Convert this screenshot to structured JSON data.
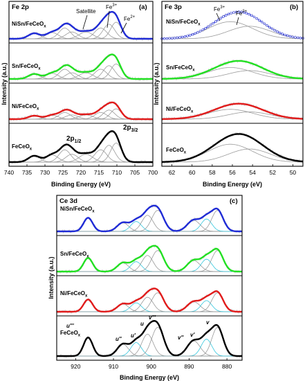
{
  "colors": {
    "blue": "#1f2bd6",
    "green": "#22e022",
    "red": "#e11b1b",
    "black": "#000000",
    "component_gray": "#9a9a9a",
    "component_cyan": "#33c6dd",
    "raw": "#d0d0d0"
  },
  "chart_data": [
    {
      "panel": "(a)",
      "title": "Fe 2p",
      "type": "line",
      "xlabel": "Binding Energy (eV)",
      "ylabel": "Intensity (a.u.)",
      "xlim": [
        740,
        700
      ],
      "x_reversed": true,
      "xticks": [
        740,
        735,
        730,
        725,
        720,
        715,
        710,
        705,
        700
      ],
      "samples": [
        "NiSn/FeCeOx",
        "Sn/FeCeOx",
        "Ni/FeCeOx",
        "FeCeOx"
      ],
      "sample_colors": [
        "blue",
        "green",
        "red",
        "black"
      ],
      "annotations": [
        {
          "text": "Satellite",
          "x": 718,
          "sample": "NiSn/FeCeOx"
        },
        {
          "text": "Fe3+",
          "x": 712,
          "sample": "NiSn/FeCeOx"
        },
        {
          "text": "Fe2+",
          "x": 707,
          "sample": "NiSn/FeCeOx"
        },
        {
          "text": "2p1/2",
          "x": 724,
          "sample": "FeCeOx"
        },
        {
          "text": "2p3/2",
          "x": 710,
          "sample": "FeCeOx"
        }
      ],
      "components": [
        {
          "center": 733,
          "width": 1.6,
          "amp": 0.28
        },
        {
          "center": 728,
          "width": 1.7,
          "amp": 0.32
        },
        {
          "center": 724.5,
          "width": 1.6,
          "amp": 0.55
        },
        {
          "center": 722.5,
          "width": 1.7,
          "amp": 0.35
        },
        {
          "center": 718.6,
          "width": 1.9,
          "amp": 0.35
        },
        {
          "center": 714.5,
          "width": 1.7,
          "amp": 0.55
        },
        {
          "center": 712.2,
          "width": 1.6,
          "amp": 0.75
        },
        {
          "center": 710.2,
          "width": 1.5,
          "amp": 0.85
        }
      ],
      "scales": [
        1.0,
        0.95,
        0.65,
        1.1
      ]
    },
    {
      "panel": "(b)",
      "title": "Fe 3p",
      "type": "line",
      "xlabel": "Binding Energy (eV)",
      "ylabel": "Intensity (a.u.)",
      "xlim": [
        63,
        49
      ],
      "x_reversed": true,
      "xticks": [
        62,
        60,
        58,
        56,
        54,
        52,
        50
      ],
      "samples": [
        "NiSn/FeCeOx",
        "Sn/FeCeOx",
        "Ni/FeCeOx",
        "FeCeOx"
      ],
      "sample_colors": [
        "blue",
        "green",
        "red",
        "black"
      ],
      "annotations": [
        {
          "text": "Fe3+",
          "x": 57.2,
          "sample": "NiSn/FeCeOx"
        },
        {
          "text": "Fe2+",
          "x": 54.8,
          "sample": "NiSn/FeCeOx"
        }
      ],
      "components": [
        {
          "center": 56.2,
          "width": 2.2,
          "amp": 0.75
        },
        {
          "center": 54.3,
          "width": 2.1,
          "amp": 0.55
        }
      ],
      "scales": [
        1.0,
        0.7,
        0.6,
        1.0
      ]
    },
    {
      "panel": "(c)",
      "title": "Ce 3d",
      "type": "line",
      "xlabel": "Binding Energy (eV)",
      "ylabel": "Intensity (a.u.)",
      "xlim": [
        925,
        876
      ],
      "x_reversed": true,
      "xticks": [
        920,
        910,
        900,
        890,
        880
      ],
      "samples": [
        "NiSn/FeCeOx",
        "Sn/FeCeOx",
        "Ni/FeCeOx",
        "FeCeOx"
      ],
      "sample_colors": [
        "blue",
        "green",
        "red",
        "black"
      ],
      "annotations": [
        {
          "text": "u'''",
          "x": 917,
          "sample": "FeCeOx"
        },
        {
          "text": "u''",
          "x": 907.5,
          "sample": "FeCeOx"
        },
        {
          "text": "u'",
          "x": 904,
          "sample": "FeCeOx"
        },
        {
          "text": "u",
          "x": 901.5,
          "sample": "FeCeOx"
        },
        {
          "text": "v'''",
          "x": 898.5,
          "sample": "FeCeOx"
        },
        {
          "text": "v''",
          "x": 889,
          "sample": "FeCeOx"
        },
        {
          "text": "v'",
          "x": 885.5,
          "sample": "FeCeOx"
        },
        {
          "text": "v",
          "x": 882.5,
          "sample": "FeCeOx"
        }
      ],
      "components": [
        {
          "center": 916.7,
          "width": 1.2,
          "amp": 0.55,
          "kind": "gray"
        },
        {
          "center": 907.5,
          "width": 1.5,
          "amp": 0.35,
          "kind": "gray"
        },
        {
          "center": 904.0,
          "width": 1.4,
          "amp": 0.4,
          "kind": "cyan"
        },
        {
          "center": 901.0,
          "width": 1.5,
          "amp": 0.65,
          "kind": "gray"
        },
        {
          "center": 898.3,
          "width": 1.6,
          "amp": 0.85,
          "kind": "gray"
        },
        {
          "center": 888.8,
          "width": 1.7,
          "amp": 0.45,
          "kind": "gray"
        },
        {
          "center": 885.4,
          "width": 1.4,
          "amp": 0.5,
          "kind": "cyan"
        },
        {
          "center": 882.5,
          "width": 1.5,
          "amp": 0.85,
          "kind": "gray"
        }
      ],
      "scales": [
        1.0,
        1.0,
        0.9,
        1.2
      ]
    }
  ],
  "labels": {
    "a": {
      "title": "Fe 2p",
      "letter": "(a)",
      "ylabel": "Intensity (a.u.)",
      "xlabel": "Binding Energy (eV)",
      "samples": [
        "NiSn/FeCeO",
        "Sn/FeCeO",
        "Ni/FeCeO",
        "FeCeO"
      ],
      "sample_sub": "x",
      "satellite": "Satellite",
      "fe3": "Fe",
      "fe3_sup": "3+",
      "fe2": "Fe",
      "fe2_sup": "2+",
      "p12": "2p",
      "p12_sub": "1/2",
      "p32": "2p",
      "p32_sub": "3/2",
      "xticks": [
        "740",
        "735",
        "730",
        "725",
        "720",
        "715",
        "710",
        "705",
        "700"
      ]
    },
    "b": {
      "title": "Fe 3p",
      "letter": "(b)",
      "ylabel": "Intensity (a.u.)",
      "xlabel": "Binding Energy (eV)",
      "samples": [
        "NiSn/FeCeO",
        "Sn/FeCeO",
        "Ni/FeCeO",
        "FeCeO"
      ],
      "sample_sub": "x",
      "fe3": "Fe",
      "fe3_sup": "3+",
      "fe2": "Fe",
      "fe2_sup": "2+",
      "xticks": [
        "62",
        "60",
        "58",
        "56",
        "54",
        "52",
        "50"
      ]
    },
    "c": {
      "title": "Ce 3d",
      "letter": "(c)",
      "ylabel": "Intensity (a.u.)",
      "xlabel": "Binding Energy (eV)",
      "samples": [
        "NiSn/FeCeO",
        "Sn/FeCeO",
        "Ni/FeCeO",
        "FeCeO"
      ],
      "sample_sub": "x",
      "peaks": [
        "u'''",
        "u''",
        "u'",
        "u",
        "v'''",
        "v''",
        "v'",
        "v"
      ],
      "xticks": [
        "920",
        "910",
        "900",
        "890",
        "880"
      ]
    }
  }
}
